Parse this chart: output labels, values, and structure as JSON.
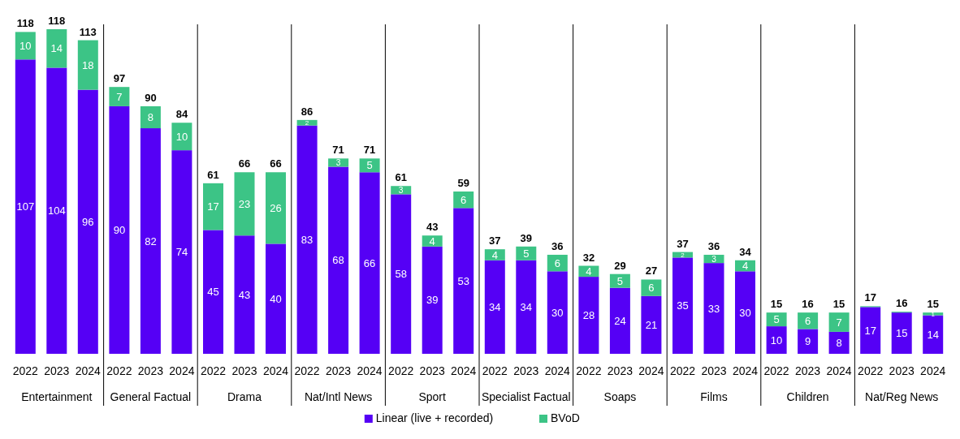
{
  "chart_data": [
    {
      "type": "bar",
      "stacked": true,
      "data_labels": true,
      "legend": "bottom",
      "xlabel": "Entertainment",
      "categories": [
        "2022",
        "2023",
        "2024"
      ],
      "totals": [
        "118",
        "118",
        "113"
      ],
      "series": [
        {
          "name": "Linear (live + recorded)",
          "color": "#5500f5",
          "values": [
            107,
            104,
            96
          ]
        },
        {
          "name": "BVoD",
          "color": "#3cc486",
          "values": [
            10,
            14,
            18
          ]
        }
      ]
    },
    {
      "type": "bar",
      "stacked": true,
      "data_labels": true,
      "xlabel": "General Factual",
      "categories": [
        "2022",
        "2023",
        "2024"
      ],
      "totals": [
        "97",
        "90",
        "84"
      ],
      "series": [
        {
          "color": "#5500f5",
          "values": [
            90,
            82,
            74
          ]
        },
        {
          "color": "#3cc486",
          "values": [
            7,
            8,
            10
          ]
        }
      ]
    },
    {
      "type": "bar",
      "stacked": true,
      "data_labels": true,
      "xlabel": "Drama",
      "categories": [
        "2022",
        "2023",
        "2024"
      ],
      "totals": [
        "61",
        "66",
        "66"
      ],
      "series": [
        {
          "color": "#5500f5",
          "values": [
            45,
            43,
            40
          ]
        },
        {
          "color": "#3cc486",
          "values": [
            17,
            23,
            26
          ]
        }
      ]
    },
    {
      "type": "bar",
      "stacked": true,
      "data_labels": true,
      "xlabel": "Nat/Intl News",
      "categories": [
        "2022",
        "2023",
        "2024"
      ],
      "totals": [
        "86",
        "71",
        "71"
      ],
      "series": [
        {
          "color": "#5500f5",
          "values": [
            83,
            68,
            66
          ]
        },
        {
          "color": "#3cc486",
          "values": [
            2,
            3,
            5
          ]
        }
      ]
    },
    {
      "type": "bar",
      "stacked": true,
      "data_labels": true,
      "xlabel": "Sport",
      "categories": [
        "2022",
        "2023",
        "2024"
      ],
      "totals": [
        "61",
        "43",
        "59"
      ],
      "series": [
        {
          "color": "#5500f5",
          "values": [
            58,
            39,
            53
          ]
        },
        {
          "color": "#3cc486",
          "values": [
            3,
            4,
            6
          ]
        }
      ]
    },
    {
      "type": "bar",
      "stacked": true,
      "data_labels": true,
      "xlabel": "Specialist Factual",
      "categories": [
        "2022",
        "2023",
        "2024"
      ],
      "totals": [
        "37",
        "39",
        "36"
      ],
      "series": [
        {
          "color": "#5500f5",
          "values": [
            34,
            34,
            30
          ]
        },
        {
          "color": "#3cc486",
          "values": [
            4,
            5,
            6
          ]
        }
      ]
    },
    {
      "type": "bar",
      "stacked": true,
      "data_labels": true,
      "xlabel": "Soaps",
      "categories": [
        "2022",
        "2023",
        "2024"
      ],
      "totals": [
        "32",
        "29",
        "27"
      ],
      "series": [
        {
          "color": "#5500f5",
          "values": [
            28,
            24,
            21
          ]
        },
        {
          "color": "#3cc486",
          "values": [
            4,
            5,
            6
          ]
        }
      ]
    },
    {
      "type": "bar",
      "stacked": true,
      "data_labels": true,
      "xlabel": "Films",
      "categories": [
        "2022",
        "2023",
        "2024"
      ],
      "totals": [
        "37",
        "36",
        "34"
      ],
      "series": [
        {
          "color": "#5500f5",
          "values": [
            35,
            33,
            30
          ]
        },
        {
          "color": "#3cc486",
          "values": [
            2,
            3,
            4
          ]
        }
      ]
    },
    {
      "type": "bar",
      "stacked": true,
      "data_labels": true,
      "xlabel": "Children",
      "categories": [
        "2022",
        "2023",
        "2024"
      ],
      "totals": [
        "15",
        "16",
        "15"
      ],
      "series": [
        {
          "color": "#5500f5",
          "values": [
            10,
            9,
            8
          ]
        },
        {
          "color": "#3cc486",
          "values": [
            5,
            6,
            7
          ]
        }
      ]
    },
    {
      "type": "bar",
      "stacked": true,
      "xlabel": "Nat/Reg News",
      "categories": [
        "2022",
        "2023",
        "2024"
      ],
      "totals": [
        "17",
        "16",
        "15"
      ],
      "series": [
        {
          "color": "#5500f5",
          "values": [
            17,
            15,
            14
          ],
          "value_labels": [
            "17",
            "15",
            "14"
          ]
        },
        {
          "color": "#3cc486",
          "values": [
            0.3,
            0.3,
            1
          ],
          "value_labels": [
            null,
            null,
            "1"
          ]
        }
      ]
    }
  ]
}
